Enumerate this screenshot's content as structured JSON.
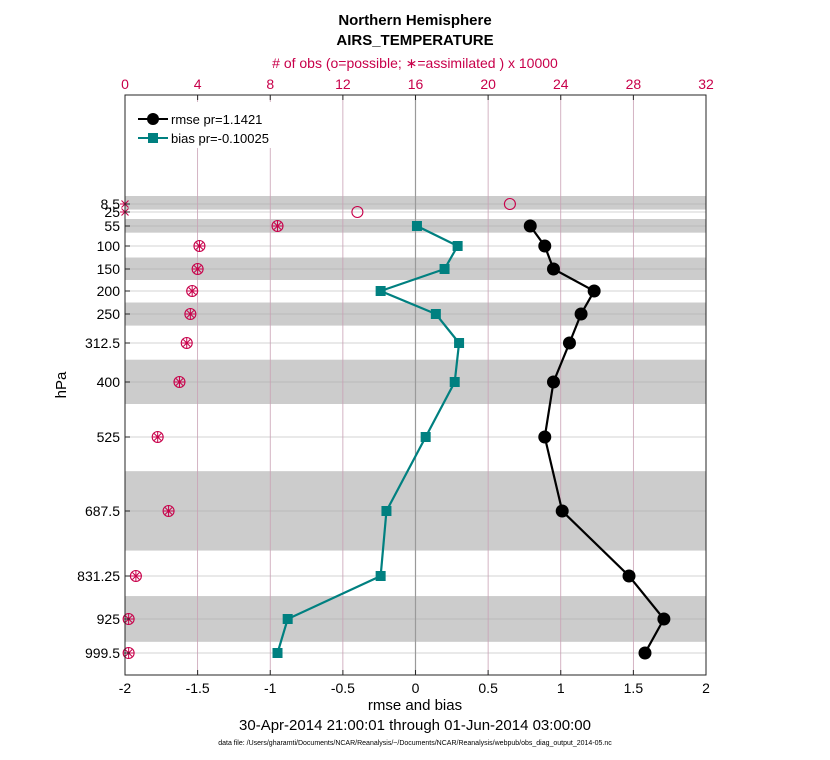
{
  "chart_data": {
    "type": "line",
    "title": "Northern Hemisphere",
    "subtitle": "AIRS_TEMPERATURE",
    "xlabel": "rmse and bias",
    "ylabel": "hPa",
    "top_xlabel": "# of obs (o=possible; ∗=assimilated ) x 10000",
    "date_range": "30-Apr-2014 21:00:01 through 01-Jun-2014 03:00:00",
    "footnote": "data file: /Users/gharamti/Documents/NCAR/Reanalysis/~/Documents/NCAR/Reanalysis/webpub/obs_diag_output_2014-05.nc",
    "xlim": [
      -2,
      2
    ],
    "x_ticks": [
      -2,
      -1.5,
      -1,
      -0.5,
      0,
      0.5,
      1,
      1.5,
      2
    ],
    "x_tick_labels": [
      "-2",
      "-1.5",
      "-1",
      "-0.5",
      "0",
      "0.5",
      "1",
      "1.5",
      "2"
    ],
    "top_xlim": [
      0,
      32
    ],
    "top_ticks": [
      0,
      4,
      8,
      12,
      16,
      20,
      24,
      28,
      32
    ],
    "top_tick_labels": [
      "0",
      "4",
      "8",
      "12",
      "16",
      "20",
      "24",
      "28",
      "32"
    ],
    "levels": [
      8.5,
      25,
      55,
      100,
      150,
      200,
      250,
      312.5,
      400,
      525,
      687.5,
      831.25,
      925,
      999.5
    ],
    "level_labels": [
      "8.5",
      "25",
      "55",
      "100",
      "150",
      "200",
      "250",
      "312.5",
      "400",
      "525",
      "687.5",
      "831.25",
      "925",
      "999.5"
    ],
    "series": [
      {
        "name": "rmse pr=1.1421",
        "color": "#000000",
        "marker": "circle",
        "levels": [
          55,
          100,
          150,
          200,
          250,
          312.5,
          400,
          525,
          687.5,
          831.25,
          925,
          999.5
        ],
        "values": [
          0.79,
          0.89,
          0.95,
          1.23,
          1.14,
          1.06,
          0.95,
          0.89,
          1.01,
          1.47,
          1.71,
          1.58
        ]
      },
      {
        "name": "bias pr=-0.10025",
        "color": "#008080",
        "marker": "square",
        "levels": [
          55,
          100,
          150,
          200,
          250,
          312.5,
          400,
          525,
          687.5,
          831.25,
          925,
          999.5
        ],
        "values": [
          0.01,
          0.29,
          0.2,
          -0.24,
          0.14,
          0.3,
          0.27,
          0.07,
          -0.2,
          -0.24,
          -0.88,
          -0.95
        ]
      }
    ],
    "obs_possible": {
      "levels": [
        8.5,
        25,
        55,
        100,
        150,
        200,
        250,
        312.5,
        400,
        525,
        687.5,
        831.25,
        925,
        999.5
      ],
      "values": [
        21.2,
        12.8,
        8.4,
        4.1,
        4.0,
        3.7,
        3.6,
        3.4,
        3.0,
        1.8,
        2.4,
        0.6,
        0.2,
        0.2
      ]
    },
    "obs_assimilated": {
      "levels": [
        8.5,
        25,
        55,
        100,
        150,
        200,
        250,
        312.5,
        400,
        525,
        687.5,
        831.25,
        925,
        999.5
      ],
      "values": [
        0.0,
        0.0,
        8.4,
        4.1,
        4.0,
        3.7,
        3.6,
        3.4,
        3.0,
        1.8,
        2.4,
        0.6,
        0.2,
        0.2
      ]
    },
    "shaded_bands_hpa": [
      [
        0,
        20
      ],
      [
        40,
        70
      ],
      [
        125,
        175
      ],
      [
        225,
        275
      ],
      [
        350,
        450
      ],
      [
        600,
        775
      ],
      [
        875,
        975
      ]
    ],
    "colors": {
      "rmse": "#000000",
      "bias": "#008080",
      "obs": "#c8004a",
      "band": "#cccccc",
      "vgrid": "#c9a0b4"
    }
  }
}
